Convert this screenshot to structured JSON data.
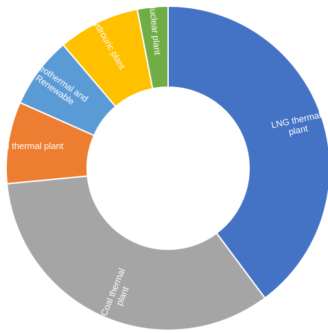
{
  "chart_data": {
    "type": "donut",
    "title": "",
    "unit": "%",
    "slices": [
      {
        "label": "LNG    thermal plant",
        "value": 39.0,
        "color": "#4472C4"
      },
      {
        "label": "Coal thermal plant",
        "value": 33.0,
        "color": "#A5A5A5"
      },
      {
        "label": "Oil thermal plant",
        "value": 8.0,
        "color": "#ED7D31"
      },
      {
        "label": "Geothermal and Renewable",
        "value": 7.0,
        "color": "#5B9BD5"
      },
      {
        "label": "Hydrouric plant",
        "value": 8.0,
        "color": "#FFC000"
      },
      {
        "label": "Nuclear plant",
        "value": 3.0,
        "color": "#70AD47"
      }
    ]
  }
}
